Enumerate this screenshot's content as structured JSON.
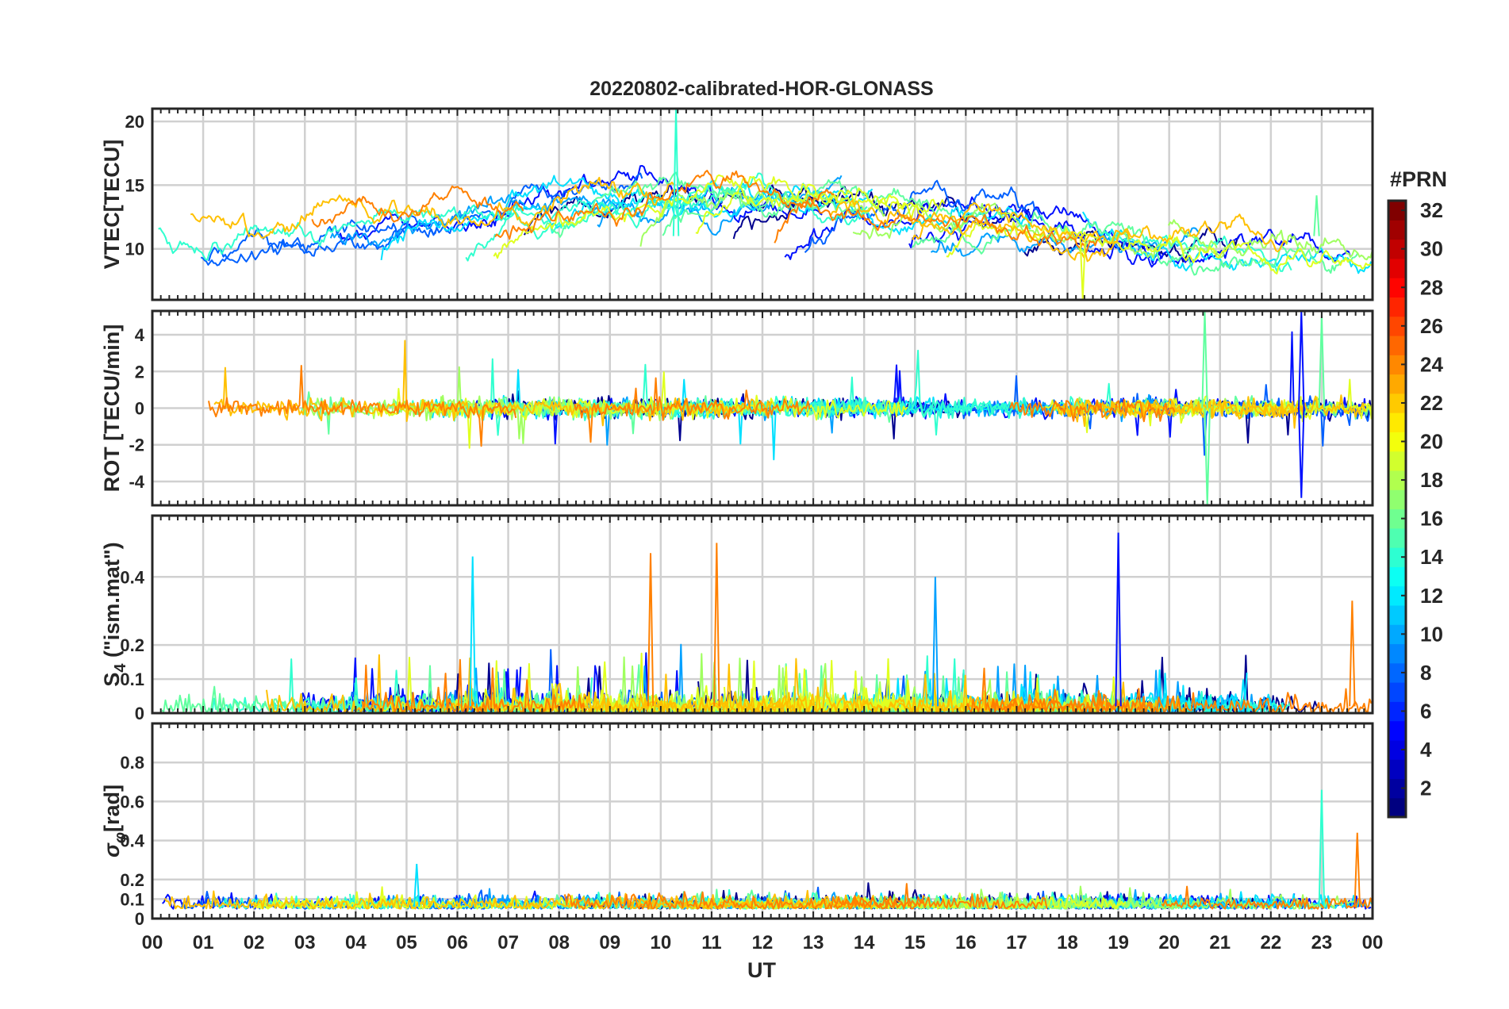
{
  "chart_data": {
    "type": "line",
    "title": "20220802-calibrated-HOR-GLONASS",
    "xlabel": "UT",
    "x_ticks": [
      "00",
      "01",
      "02",
      "03",
      "04",
      "05",
      "06",
      "07",
      "08",
      "09",
      "10",
      "11",
      "12",
      "13",
      "14",
      "15",
      "16",
      "17",
      "18",
      "19",
      "20",
      "21",
      "22",
      "23",
      "00"
    ],
    "xlim_hours": [
      0,
      24
    ],
    "grid": true,
    "panels": [
      {
        "id": "vtec",
        "ylabel": "VTEC[TECU]",
        "ylim": [
          6,
          21
        ],
        "y_ticks": [
          10,
          15,
          20
        ],
        "y_tick_labels": [
          "10",
          "15",
          "20"
        ],
        "description_values": {
          "typical_range": [
            8,
            16
          ],
          "max_spike": 21
        }
      },
      {
        "id": "rot",
        "ylabel": "ROT [TECU/min]",
        "ylim": [
          -5.3,
          5.3
        ],
        "y_ticks": [
          -4,
          -2,
          0,
          2,
          4
        ],
        "y_tick_labels": [
          "-4",
          "-2",
          "0",
          "2",
          "4"
        ]
      },
      {
        "id": "s4",
        "ylabel_main": "S",
        "ylabel_sub": "4",
        "ylabel_rest": " (\"ism.mat\")",
        "ylim": [
          0,
          0.58
        ],
        "y_ticks": [
          0,
          0.1,
          0.2,
          0.4
        ],
        "y_tick_labels": [
          "0",
          "0.1",
          "0.2",
          "0.4"
        ]
      },
      {
        "id": "sigma",
        "ylabel_main": "σ",
        "ylabel_sub": "φ",
        "ylabel_rest": "[rad]",
        "ylim": [
          0,
          1
        ],
        "y_ticks": [
          0,
          0.1,
          0.2,
          0.4,
          0.6,
          0.8
        ],
        "y_tick_labels": [
          "0",
          "0.1",
          "0.2",
          "0.4",
          "0.6",
          "0.8"
        ]
      }
    ],
    "series": [
      {
        "prn": 1,
        "color": "#00008f"
      },
      {
        "prn": 4,
        "color": "#0010ff"
      },
      {
        "prn": 7,
        "color": "#0060ff"
      },
      {
        "prn": 9,
        "color": "#00a0ff"
      },
      {
        "prn": 12,
        "color": "#00e0ff"
      },
      {
        "prn": 14,
        "color": "#30ffcf"
      },
      {
        "prn": 16,
        "color": "#60ff9f"
      },
      {
        "prn": 18,
        "color": "#a0ff60"
      },
      {
        "prn": 20,
        "color": "#e0ff20"
      },
      {
        "prn": 22,
        "color": "#ffc000"
      },
      {
        "prn": 24,
        "color": "#ff8000"
      }
    ],
    "colorbar": {
      "title": "#PRN",
      "range": [
        1,
        32
      ],
      "tick_labels": [
        "2",
        "4",
        "6",
        "8",
        "10",
        "12",
        "14",
        "16",
        "18",
        "20",
        "22",
        "24",
        "26",
        "28",
        "30",
        "32"
      ],
      "colormap": "jet"
    },
    "annotations": [
      {
        "panel": "vtec",
        "text": "spike near 10.3 UT reaching ~21 TECU"
      },
      {
        "panel": "rot",
        "text": "large excursions near 20.7 UT and 22.6 UT (±5)"
      },
      {
        "panel": "sigma",
        "text": "spikes near 23.0 UT (~0.66) and 23.7 UT (~0.44)"
      }
    ]
  }
}
